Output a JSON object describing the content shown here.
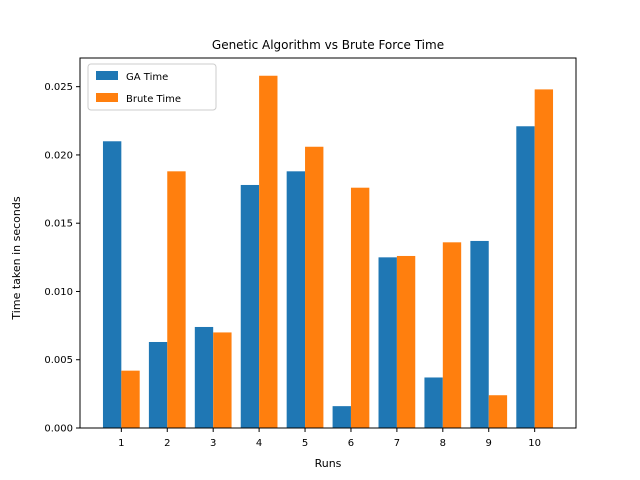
{
  "chart_data": {
    "type": "bar",
    "title": "Genetic Algorithm vs Brute Force Time",
    "xlabel": "Runs",
    "ylabel": "Time taken in seconds",
    "categories": [
      "1",
      "2",
      "3",
      "4",
      "5",
      "6",
      "7",
      "8",
      "9",
      "10"
    ],
    "series": [
      {
        "name": "GA Time",
        "color": "#1f77b4",
        "values": [
          0.021,
          0.0063,
          0.0074,
          0.0178,
          0.0188,
          0.0016,
          0.0125,
          0.0037,
          0.0137,
          0.0221
        ]
      },
      {
        "name": "Brute Time",
        "color": "#ff7f0e",
        "values": [
          0.0042,
          0.0188,
          0.007,
          0.0258,
          0.0206,
          0.0176,
          0.0126,
          0.0136,
          0.0024,
          0.0248
        ]
      }
    ],
    "ylim": [
      0,
      0.0271
    ],
    "yticks": [
      "0.000",
      "0.005",
      "0.010",
      "0.015",
      "0.020",
      "0.025"
    ],
    "grid": false,
    "legend_position": "top-left"
  }
}
